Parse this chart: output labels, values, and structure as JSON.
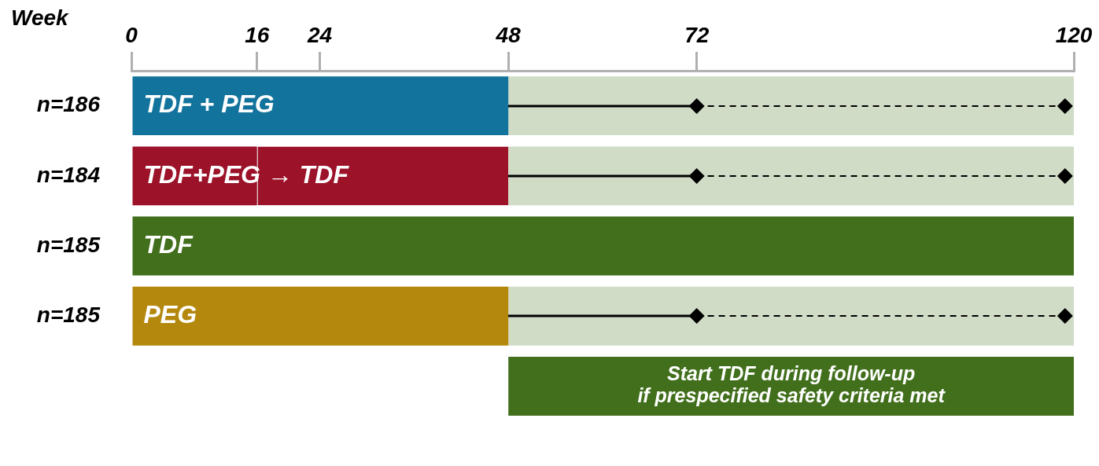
{
  "chart_data": {
    "type": "bar",
    "orientation": "horizontal",
    "xlabel": "Week",
    "categories": [
      "n=186",
      "n=184",
      "n=185",
      "n=185",
      null
    ],
    "xlim": [
      0,
      120
    ],
    "xticks": [
      0,
      16,
      24,
      48,
      72,
      120
    ],
    "grid": false,
    "series": [
      {
        "colors": [
          "#12739c",
          "#9b1229",
          "#416f1c",
          "#b3880c",
          null
        ],
        "base": [
          0,
          0,
          0,
          0,
          null
        ],
        "values": [
          48,
          16,
          120,
          48,
          null
        ],
        "value_labels": [
          "TDF + PEG",
          "TDF+PEG → TDF",
          "TDF",
          "PEG",
          null
        ]
      },
      {
        "color": "#9b1229",
        "base": [
          null,
          16,
          null,
          null,
          null
        ],
        "values": [
          null,
          32,
          null,
          null,
          null
        ]
      },
      {
        "colors": [
          "#d1dcc6",
          "#d1dcc6",
          null,
          "#d1dcc6",
          "#416f1c"
        ],
        "base": [
          48,
          48,
          null,
          48,
          48
        ],
        "values": [
          72,
          72,
          null,
          72,
          72
        ],
        "value_labels": [
          null,
          null,
          null,
          null,
          "Start TDF during follow-up\nif prespecified safety criteria met"
        ]
      }
    ]
  }
}
